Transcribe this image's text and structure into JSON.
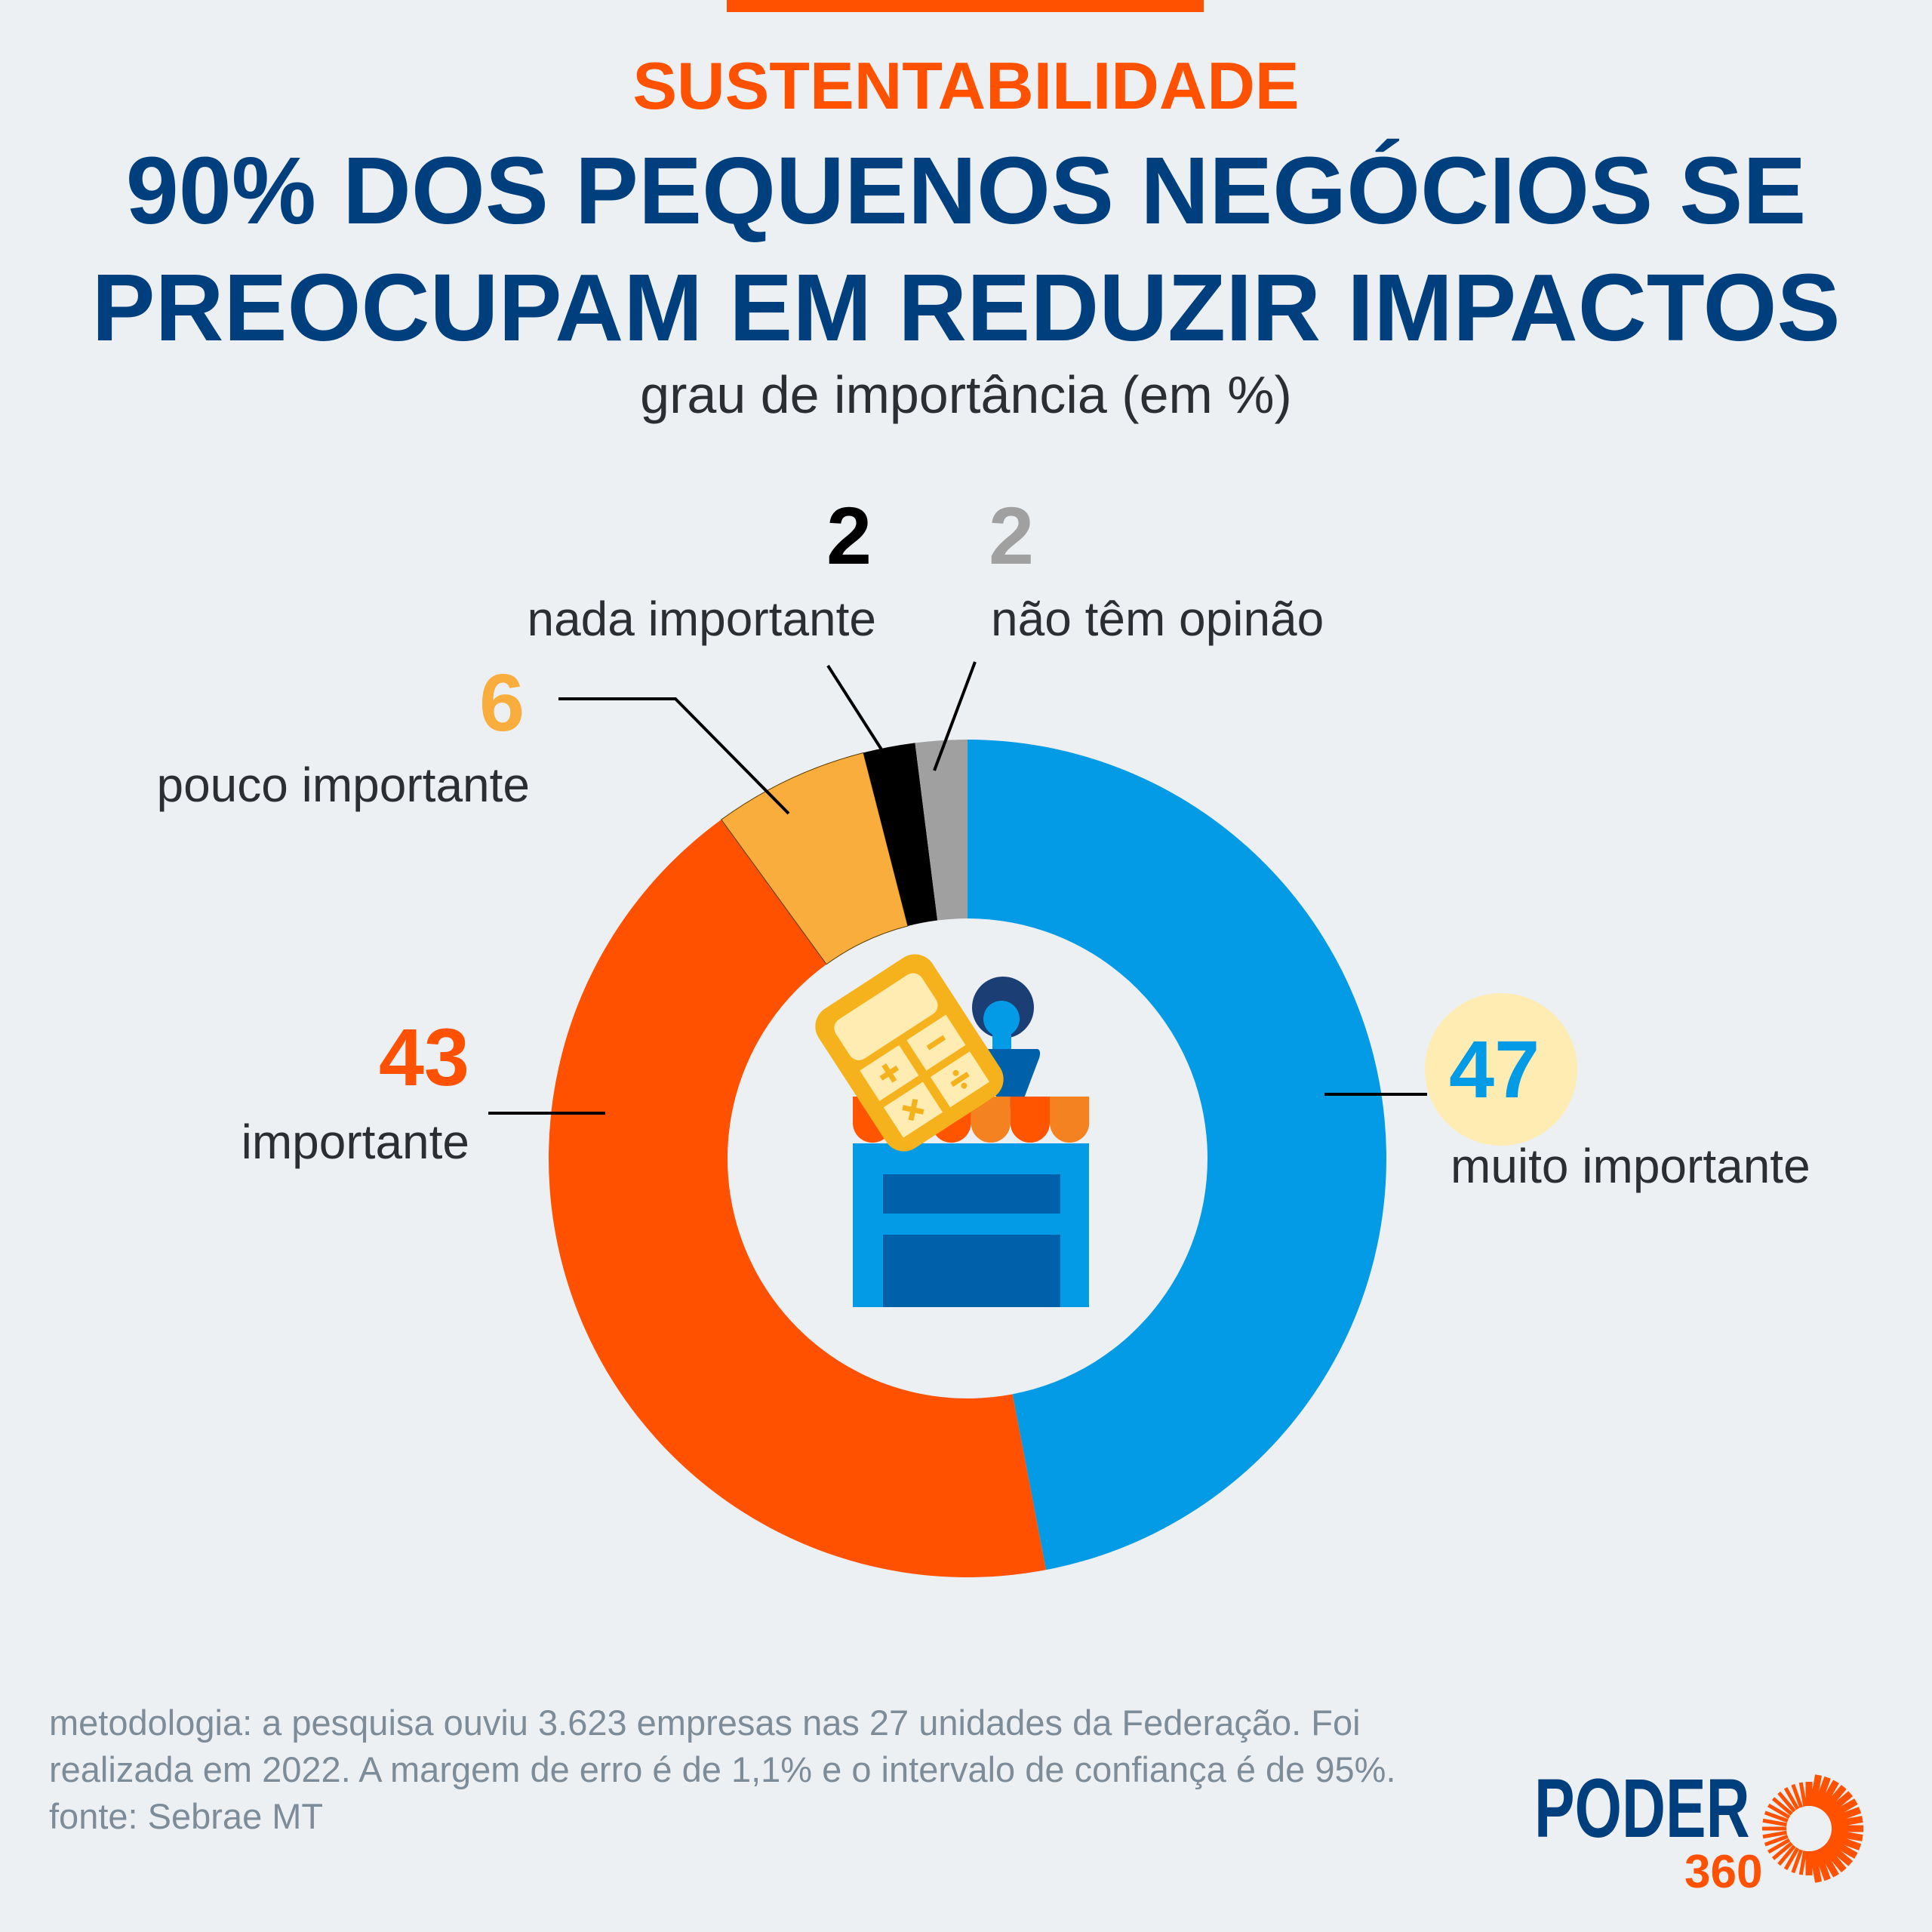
{
  "header": {
    "kicker": "SUSTENTABILIDADE",
    "title_line1": "90% DOS PEQUENOS NEGÓCIOS SE",
    "title_line2": "PREOCUPAM EM REDUZIR IMPACTOS",
    "subtitle": "grau de importância (em %)"
  },
  "chart_data": {
    "type": "pie",
    "subtype": "donut",
    "title": "90% DOS PEQUENOS NEGÓCIOS SE PREOCUPAM EM REDUZIR IMPACTOS",
    "subtitle": "grau de importância (em %)",
    "slices": [
      {
        "label": "muito importante",
        "value": 47,
        "display": "47",
        "color": "#039be5"
      },
      {
        "label": "importante",
        "value": 43,
        "display": "43",
        "color": "#ff5100"
      },
      {
        "label": "pouco importante",
        "value": 6,
        "display": "6",
        "color": "#f9ad3c"
      },
      {
        "label": "nada importante",
        "value": 2,
        "display": "2",
        "color": "#000000"
      },
      {
        "label": "não têm opinão",
        "value": 2,
        "display": "2",
        "color": "#a0a0a0"
      }
    ],
    "start": "12 o'clock",
    "direction": "clockwise",
    "highlight_color": "#ffecb3"
  },
  "center_icon": "store-with-person-and-calculator-icon",
  "footer": {
    "line1": "metodologia: a pesquisa ouviu 3.623 empresas nas 27 unidades da Federação. Foi",
    "line2": "realizada em 2022. A margem de erro é de 1,1% e o intervalo de confiança é de 95%.",
    "line3": "fonte: Sebrae MT"
  },
  "logo": {
    "name": "PODER",
    "number": "360"
  },
  "colors": {
    "accent": "#ff5100",
    "title": "#003f7d",
    "background": "#edf0f3"
  }
}
